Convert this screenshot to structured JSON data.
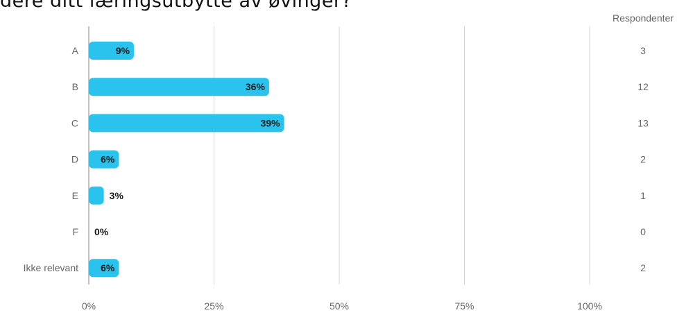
{
  "page": {
    "title": "dere ditt læringsutbytte av øvinger?"
  },
  "chart_data": {
    "type": "bar",
    "orientation": "horizontal",
    "categories": [
      "A",
      "B",
      "C",
      "D",
      "E",
      "F",
      "Ikke relevant"
    ],
    "values": [
      9,
      36,
      39,
      6,
      3,
      0,
      6
    ],
    "value_labels": [
      "9%",
      "36%",
      "39%",
      "6%",
      "3%",
      "0%",
      "6%"
    ],
    "respondents_header": "Respondenter",
    "respondents": [
      "3",
      "12",
      "13",
      "2",
      "1",
      "0",
      "2"
    ],
    "x_ticks": [
      0,
      25,
      50,
      75,
      100
    ],
    "x_tick_labels": [
      "0%",
      "25%",
      "50%",
      "75%",
      "100%"
    ],
    "xlim": [
      0,
      100
    ],
    "grid": true,
    "bar_color": "#29c3ee",
    "grid_color": "#d6d6d6",
    "text_color": "#333333",
    "muted_text_color": "#666666"
  }
}
